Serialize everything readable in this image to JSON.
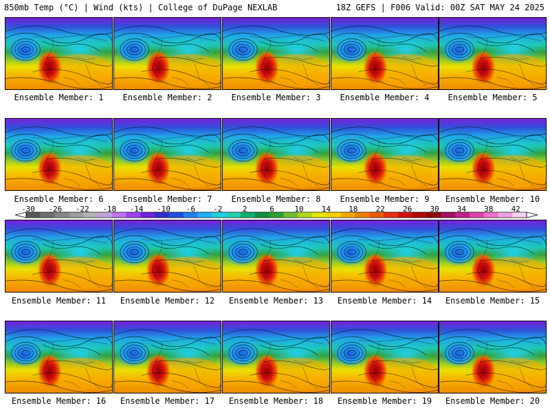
{
  "header": {
    "left_title": "850mb Temp (°C) | Wind (kts) | College of DuPage NEXLAB",
    "right_title": "18Z GEFS | F006 Valid: 00Z SAT MAY 24 2025"
  },
  "members": [
    {
      "label": "Ensemble Member: 1"
    },
    {
      "label": "Ensemble Member: 2"
    },
    {
      "label": "Ensemble Member: 3"
    },
    {
      "label": "Ensemble Member: 4"
    },
    {
      "label": "Ensemble Member: 5"
    },
    {
      "label": "Ensemble Member: 6"
    },
    {
      "label": "Ensemble Member: 7"
    },
    {
      "label": "Ensemble Member: 8"
    },
    {
      "label": "Ensemble Member: 9"
    },
    {
      "label": "Ensemble Member: 10"
    },
    {
      "label": "Ensemble Member: 11"
    },
    {
      "label": "Ensemble Member: 12"
    },
    {
      "label": "Ensemble Member: 13"
    },
    {
      "label": "Ensemble Member: 14"
    },
    {
      "label": "Ensemble Member: 15"
    },
    {
      "label": "Ensemble Member: 16"
    },
    {
      "label": "Ensemble Member: 17"
    },
    {
      "label": "Ensemble Member: 18"
    },
    {
      "label": "Ensemble Member: 19"
    },
    {
      "label": "Ensemble Member: 20"
    }
  ],
  "colorbar": {
    "ticks": [
      "-30",
      "-26",
      "-22",
      "-18",
      "-14",
      "-10",
      "-6",
      "-2",
      "2",
      "6",
      "10",
      "14",
      "18",
      "22",
      "26",
      "30",
      "34",
      "38",
      "42"
    ],
    "colors": [
      "#5a5a5a",
      "#707070",
      "#878787",
      "#9e9e9e",
      "#b4b4b4",
      "#c8a0e0",
      "#c070f0",
      "#a040f0",
      "#7020e0",
      "#3030c8",
      "#1e50e0",
      "#2080f0",
      "#20b0f0",
      "#20d0e0",
      "#20d0b0",
      "#10b070",
      "#109040",
      "#30a030",
      "#70c030",
      "#b0d820",
      "#e8e800",
      "#f8d000",
      "#f8a800",
      "#f08000",
      "#f05800",
      "#e83010",
      "#d01010",
      "#b00808",
      "#900000",
      "#a01060",
      "#c02090",
      "#e040b0",
      "#f070d0",
      "#f0a0e0",
      "#f8d0f0"
    ]
  }
}
